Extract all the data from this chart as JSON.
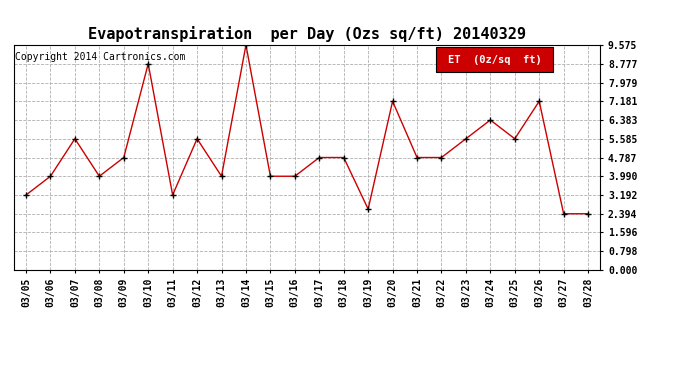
{
  "title": "Evapotranspiration  per Day (Ozs sq/ft) 20140329",
  "copyright": "Copyright 2014 Cartronics.com",
  "legend_label": "ET  (0z/sq  ft)",
  "dates": [
    "03/05",
    "03/06",
    "03/07",
    "03/08",
    "03/09",
    "03/10",
    "03/11",
    "03/12",
    "03/13",
    "03/14",
    "03/15",
    "03/16",
    "03/17",
    "03/18",
    "03/19",
    "03/20",
    "03/21",
    "03/22",
    "03/23",
    "03/24",
    "03/25",
    "03/26",
    "03/27",
    "03/28"
  ],
  "values": [
    3.192,
    3.99,
    5.585,
    3.99,
    4.787,
    8.777,
    3.192,
    5.585,
    3.99,
    9.575,
    3.99,
    3.99,
    4.787,
    4.787,
    2.593,
    7.181,
    4.787,
    4.787,
    5.585,
    6.383,
    5.585,
    7.181,
    2.394,
    2.394
  ],
  "ylim": [
    0.0,
    9.575
  ],
  "yticks": [
    0.0,
    0.798,
    1.596,
    2.394,
    3.192,
    3.99,
    4.787,
    5.585,
    6.383,
    7.181,
    7.979,
    8.777,
    9.575
  ],
  "line_color": "#cc0000",
  "marker_color": "#000000",
  "legend_bg": "#cc0000",
  "legend_text_color": "#ffffff",
  "bg_color": "#ffffff",
  "grid_color": "#b0b0b0",
  "title_fontsize": 11,
  "copyright_fontsize": 7,
  "tick_fontsize": 7,
  "legend_fontsize": 7.5
}
